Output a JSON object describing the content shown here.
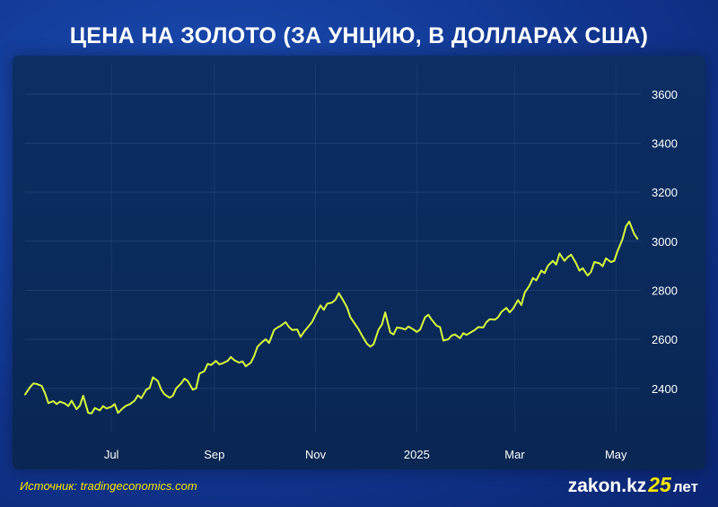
{
  "title": "ЦЕНА НА ЗОЛОТО (ЗА УНЦИЮ, В ДОЛЛАРАХ США)",
  "source": "Источник: tradingeconomics.com",
  "logo": {
    "name": "zakon.kz",
    "number": "25",
    "suffix": "лет"
  },
  "colors": {
    "line": "#d8ff3a",
    "accent": "#ffe600",
    "tick": "#ffffff"
  },
  "chart_data": {
    "type": "line",
    "title": "ЦЕНА НА ЗОЛОТО (ЗА УНЦИЮ, В ДОЛЛАРАХ США)",
    "xlabel": "",
    "ylabel": "",
    "x_ticks": [
      {
        "label": "Jul",
        "date": "2024-07-01"
      },
      {
        "label": "Sep",
        "date": "2024-09-01"
      },
      {
        "label": "Nov",
        "date": "2024-11-01"
      },
      {
        "label": "2025",
        "date": "2025-01-01"
      },
      {
        "label": "Mar",
        "date": "2025-03-01"
      },
      {
        "label": "May",
        "date": "2025-05-01"
      }
    ],
    "y_ticks": [
      2400,
      2600,
      2800,
      3000,
      3200,
      3400,
      3600
    ],
    "xlim": [
      "2024-05-10",
      "2025-05-16"
    ],
    "ylim": [
      2220,
      3720
    ],
    "grid": true,
    "series": [
      {
        "name": "",
        "points": [
          [
            "2024-05-10",
            2375
          ],
          [
            "2024-05-13",
            2405
          ],
          [
            "2024-05-15",
            2420
          ],
          [
            "2024-05-17",
            2418
          ],
          [
            "2024-05-20",
            2410
          ],
          [
            "2024-05-22",
            2380
          ],
          [
            "2024-05-24",
            2340
          ],
          [
            "2024-05-27",
            2348
          ],
          [
            "2024-05-29",
            2336
          ],
          [
            "2024-05-31",
            2346
          ],
          [
            "2024-06-03",
            2338
          ],
          [
            "2024-06-05",
            2328
          ],
          [
            "2024-06-07",
            2350
          ],
          [
            "2024-06-10",
            2315
          ],
          [
            "2024-06-12",
            2330
          ],
          [
            "2024-06-14",
            2370
          ],
          [
            "2024-06-17",
            2300
          ],
          [
            "2024-06-19",
            2298
          ],
          [
            "2024-06-21",
            2320
          ],
          [
            "2024-06-24",
            2310
          ],
          [
            "2024-06-26",
            2328
          ],
          [
            "2024-06-28",
            2318
          ],
          [
            "2024-07-01",
            2325
          ],
          [
            "2024-07-03",
            2336
          ],
          [
            "2024-07-05",
            2300
          ],
          [
            "2024-07-08",
            2320
          ],
          [
            "2024-07-10",
            2330
          ],
          [
            "2024-07-12",
            2335
          ],
          [
            "2024-07-15",
            2350
          ],
          [
            "2024-07-17",
            2372
          ],
          [
            "2024-07-19",
            2360
          ],
          [
            "2024-07-22",
            2395
          ],
          [
            "2024-07-24",
            2402
          ],
          [
            "2024-07-26",
            2445
          ],
          [
            "2024-07-29",
            2430
          ],
          [
            "2024-07-31",
            2395
          ],
          [
            "2024-08-02",
            2376
          ],
          [
            "2024-08-05",
            2362
          ],
          [
            "2024-08-07",
            2370
          ],
          [
            "2024-08-09",
            2400
          ],
          [
            "2024-08-12",
            2420
          ],
          [
            "2024-08-14",
            2440
          ],
          [
            "2024-08-16",
            2430
          ],
          [
            "2024-08-19",
            2395
          ],
          [
            "2024-08-21",
            2400
          ],
          [
            "2024-08-23",
            2460
          ],
          [
            "2024-08-26",
            2470
          ],
          [
            "2024-08-28",
            2500
          ],
          [
            "2024-08-30",
            2495
          ],
          [
            "2024-09-02",
            2512
          ],
          [
            "2024-09-04",
            2498
          ],
          [
            "2024-09-06",
            2502
          ],
          [
            "2024-09-09",
            2512
          ],
          [
            "2024-09-11",
            2528
          ],
          [
            "2024-09-13",
            2515
          ],
          [
            "2024-09-16",
            2505
          ],
          [
            "2024-09-18",
            2510
          ],
          [
            "2024-09-20",
            2490
          ],
          [
            "2024-09-23",
            2505
          ],
          [
            "2024-09-25",
            2532
          ],
          [
            "2024-09-27",
            2570
          ],
          [
            "2024-09-30",
            2590
          ],
          [
            "2024-10-02",
            2600
          ],
          [
            "2024-10-04",
            2585
          ],
          [
            "2024-10-07",
            2638
          ],
          [
            "2024-10-09",
            2648
          ],
          [
            "2024-10-11",
            2655
          ],
          [
            "2024-10-14",
            2670
          ],
          [
            "2024-10-16",
            2650
          ],
          [
            "2024-10-18",
            2638
          ],
          [
            "2024-10-21",
            2640
          ],
          [
            "2024-10-23",
            2610
          ],
          [
            "2024-10-25",
            2630
          ],
          [
            "2024-10-28",
            2655
          ],
          [
            "2024-10-30",
            2672
          ],
          [
            "2024-11-01",
            2700
          ],
          [
            "2024-11-04",
            2738
          ],
          [
            "2024-11-06",
            2720
          ],
          [
            "2024-11-08",
            2745
          ],
          [
            "2024-11-11",
            2750
          ],
          [
            "2024-11-13",
            2762
          ],
          [
            "2024-11-15",
            2788
          ],
          [
            "2024-11-18",
            2755
          ],
          [
            "2024-11-20",
            2730
          ],
          [
            "2024-11-22",
            2690
          ],
          [
            "2024-11-25",
            2660
          ],
          [
            "2024-11-27",
            2640
          ],
          [
            "2024-11-29",
            2615
          ],
          [
            "2024-12-02",
            2582
          ],
          [
            "2024-12-04",
            2570
          ],
          [
            "2024-12-06",
            2580
          ],
          [
            "2024-12-09",
            2640
          ],
          [
            "2024-12-11",
            2660
          ],
          [
            "2024-12-13",
            2710
          ],
          [
            "2024-12-16",
            2628
          ],
          [
            "2024-12-18",
            2620
          ],
          [
            "2024-12-20",
            2648
          ],
          [
            "2024-12-23",
            2645
          ],
          [
            "2024-12-25",
            2640
          ],
          [
            "2024-12-27",
            2652
          ],
          [
            "2024-12-30",
            2640
          ],
          [
            "2025-01-01",
            2630
          ],
          [
            "2025-01-03",
            2640
          ],
          [
            "2025-01-06",
            2690
          ],
          [
            "2025-01-08",
            2700
          ],
          [
            "2025-01-10",
            2680
          ],
          [
            "2025-01-13",
            2655
          ],
          [
            "2025-01-15",
            2650
          ],
          [
            "2025-01-17",
            2595
          ],
          [
            "2025-01-20",
            2600
          ],
          [
            "2025-01-22",
            2615
          ],
          [
            "2025-01-24",
            2620
          ],
          [
            "2025-01-27",
            2605
          ],
          [
            "2025-01-29",
            2625
          ],
          [
            "2025-01-31",
            2618
          ],
          [
            "2025-02-03",
            2630
          ],
          [
            "2025-02-05",
            2638
          ],
          [
            "2025-02-07",
            2650
          ],
          [
            "2025-02-10",
            2648
          ],
          [
            "2025-02-12",
            2670
          ],
          [
            "2025-02-14",
            2682
          ],
          [
            "2025-02-17",
            2680
          ],
          [
            "2025-02-19",
            2690
          ],
          [
            "2025-02-21",
            2712
          ],
          [
            "2025-02-24",
            2728
          ],
          [
            "2025-02-26",
            2710
          ],
          [
            "2025-02-28",
            2725
          ],
          [
            "2025-03-03",
            2760
          ],
          [
            "2025-03-05",
            2740
          ],
          [
            "2025-03-07",
            2790
          ],
          [
            "2025-03-10",
            2820
          ],
          [
            "2025-03-12",
            2850
          ],
          [
            "2025-03-14",
            2840
          ],
          [
            "2025-03-17",
            2880
          ],
          [
            "2025-03-19",
            2870
          ],
          [
            "2025-03-21",
            2900
          ],
          [
            "2025-03-24",
            2920
          ],
          [
            "2025-03-26",
            2905
          ],
          [
            "2025-03-28",
            2950
          ],
          [
            "2025-03-31",
            2920
          ],
          [
            "2025-04-02",
            2935
          ],
          [
            "2025-04-04",
            2945
          ],
          [
            "2025-04-07",
            2910
          ],
          [
            "2025-04-09",
            2880
          ],
          [
            "2025-04-11",
            2890
          ],
          [
            "2025-04-14",
            2860
          ],
          [
            "2025-04-16",
            2875
          ],
          [
            "2025-04-18",
            2915
          ],
          [
            "2025-04-21",
            2910
          ],
          [
            "2025-04-23",
            2898
          ],
          [
            "2025-04-25",
            2930
          ],
          [
            "2025-04-28",
            2915
          ],
          [
            "2025-04-30",
            2920
          ],
          [
            "2025-05-02",
            2960
          ],
          [
            "2025-05-05",
            3010
          ],
          [
            "2025-05-07",
            3060
          ],
          [
            "2025-05-09",
            3080
          ],
          [
            "2025-05-12",
            3030
          ],
          [
            "2025-05-14",
            3010
          ]
        ]
      }
    ]
  }
}
